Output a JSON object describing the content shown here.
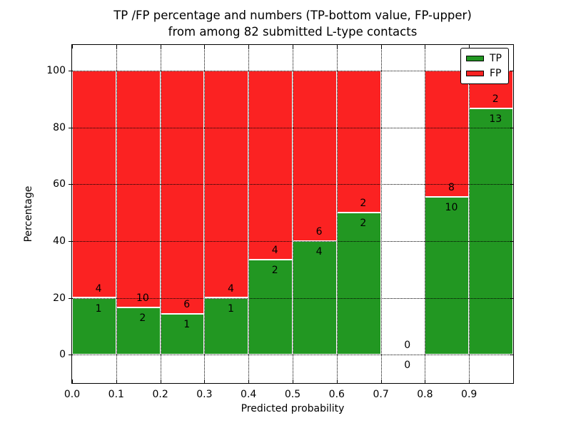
{
  "title": {
    "line1": "TP /FP percentage and numbers (TP-bottom value, FP-upper)",
    "line2": "from among 82 submitted L-type contacts"
  },
  "axes": {
    "xlabel": "Predicted probability",
    "ylabel": "Percentage",
    "x_ticks": [
      "0.0",
      "0.1",
      "0.2",
      "0.3",
      "0.4",
      "0.5",
      "0.6",
      "0.7",
      "0.8",
      "0.9"
    ],
    "y_ticks": [
      "0",
      "20",
      "40",
      "60",
      "80",
      "100"
    ]
  },
  "legend": {
    "position": "upper right",
    "entries": [
      {
        "label": "TP",
        "color": "#229722"
      },
      {
        "label": "FP",
        "color": "#fb2222"
      }
    ]
  },
  "chart_data": {
    "type": "bar",
    "stacked": true,
    "unit": "percent",
    "title": "TP /FP percentage and numbers (TP-bottom value, FP-upper) from among 82 submitted L-type contacts",
    "xlabel": "Predicted probability",
    "ylabel": "Percentage",
    "xlim": [
      0.0,
      1.0
    ],
    "ylim": [
      -10,
      109
    ],
    "grid": true,
    "grid_style": "dotted-black",
    "bar_edge_color": "#ffffff",
    "tp_color": "#229722",
    "fp_color": "#fb2222",
    "total_contacts": 82,
    "bins": [
      {
        "x0": 0.0,
        "x1": 0.1,
        "tp": 1,
        "fp": 4,
        "tp_pct": 20.0
      },
      {
        "x0": 0.1,
        "x1": 0.2,
        "tp": 2,
        "fp": 10,
        "tp_pct": 16.7
      },
      {
        "x0": 0.2,
        "x1": 0.3,
        "tp": 1,
        "fp": 6,
        "tp_pct": 14.3
      },
      {
        "x0": 0.3,
        "x1": 0.4,
        "tp": 1,
        "fp": 4,
        "tp_pct": 20.0
      },
      {
        "x0": 0.4,
        "x1": 0.5,
        "tp": 2,
        "fp": 4,
        "tp_pct": 33.3
      },
      {
        "x0": 0.5,
        "x1": 0.6,
        "tp": 4,
        "fp": 6,
        "tp_pct": 40.0
      },
      {
        "x0": 0.6,
        "x1": 0.7,
        "tp": 2,
        "fp": 2,
        "tp_pct": 50.0
      },
      {
        "x0": 0.7,
        "x1": 0.8,
        "tp": 0,
        "fp": 0,
        "tp_pct": 0.0
      },
      {
        "x0": 0.8,
        "x1": 0.9,
        "tp": 10,
        "fp": 8,
        "tp_pct": 55.6
      },
      {
        "x0": 0.9,
        "x1": 1.0,
        "tp": 13,
        "fp": 2,
        "tp_pct": 86.7
      }
    ]
  }
}
